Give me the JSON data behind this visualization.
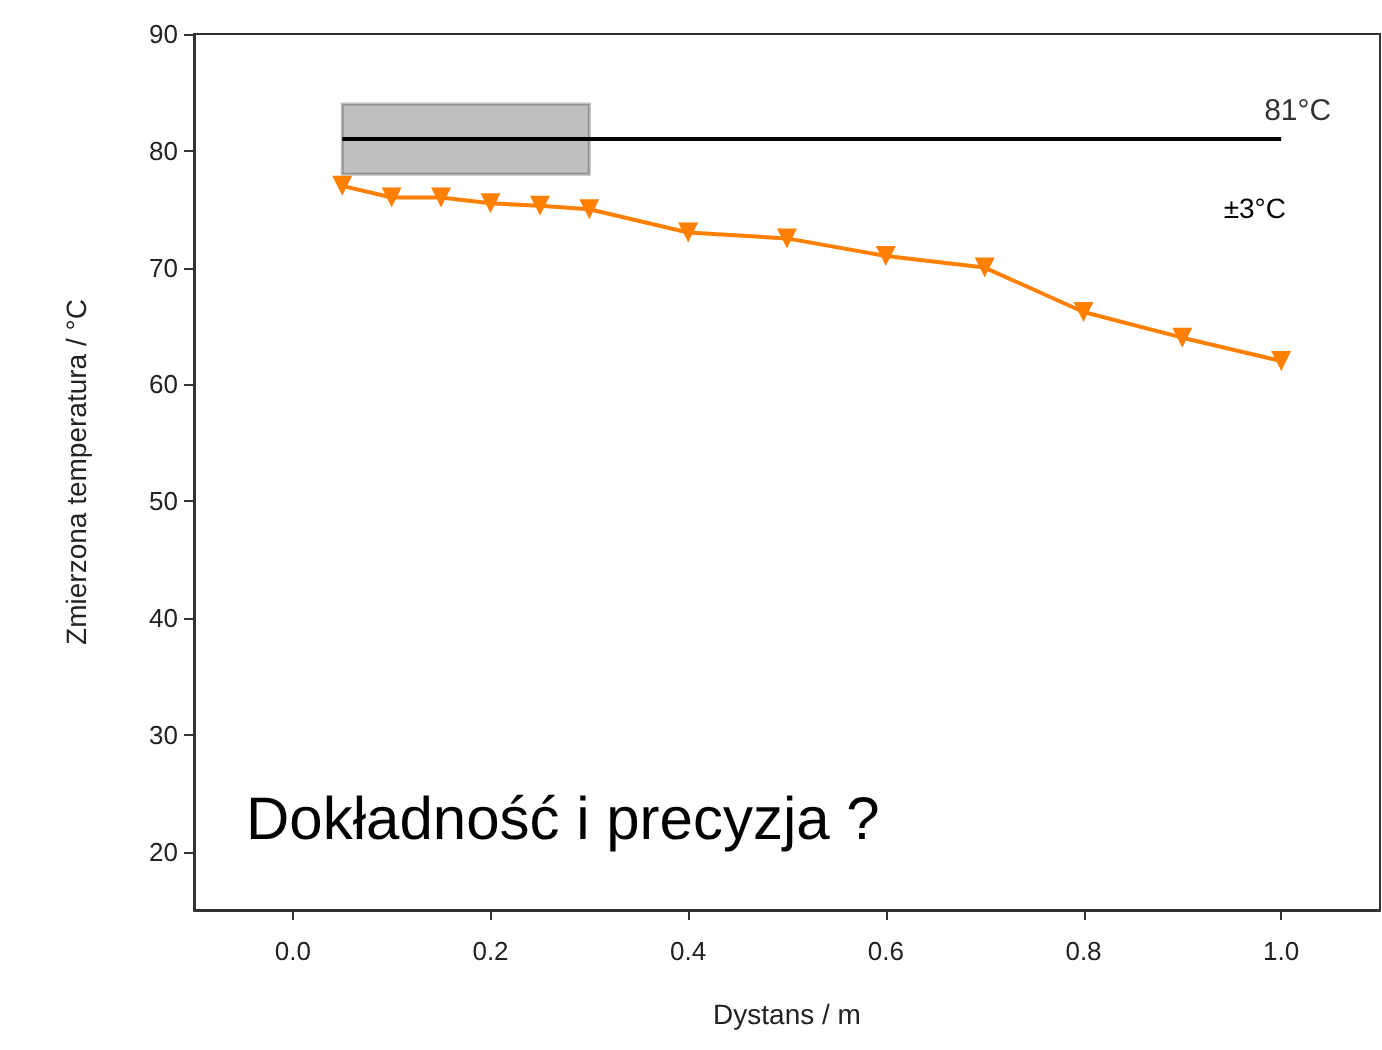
{
  "chart_data": {
    "type": "line",
    "xlabel": "Dystans / m",
    "ylabel": "Zmierzona temperatura / °C",
    "xlim": [
      -0.1,
      1.1
    ],
    "xticks": [
      {
        "value": 0,
        "label": "0.0"
      },
      {
        "value": 0.2,
        "label": "0.2"
      },
      {
        "value": 0.4,
        "label": "0.4"
      },
      {
        "value": 0.6,
        "label": "0.6"
      },
      {
        "value": 0.8,
        "label": "0.8"
      },
      {
        "value": 1,
        "label": "1.0"
      }
    ],
    "ylim": [
      15,
      90
    ],
    "yticks": [
      20,
      30,
      40,
      50,
      60,
      70,
      80,
      90
    ],
    "grid": false,
    "series": [
      {
        "color": "#ff7f00",
        "marker": "triangle",
        "x": [
          0.05,
          0.1,
          0.15,
          0.2,
          0.25,
          0.3,
          0.4,
          0.5,
          0.6,
          0.7,
          0.8,
          0.9,
          1.0
        ],
        "values": [
          77,
          76,
          76,
          75.5,
          75.3,
          75,
          73,
          72.5,
          71,
          70,
          66.2,
          64,
          62
        ]
      },
      {
        "color": "#000000",
        "marker": "none",
        "x": [
          0.05,
          0.3,
          1.0
        ],
        "values": [
          81,
          81,
          81
        ],
        "lower": [
          78,
          78,
          null
        ],
        "upper": [
          84,
          84,
          null
        ]
      }
    ],
    "annotations": [
      {
        "text": "81°C",
        "x": 1.0,
        "y": 81
      },
      "±3°C",
      "Dokładność i precyzja ?"
    ]
  }
}
